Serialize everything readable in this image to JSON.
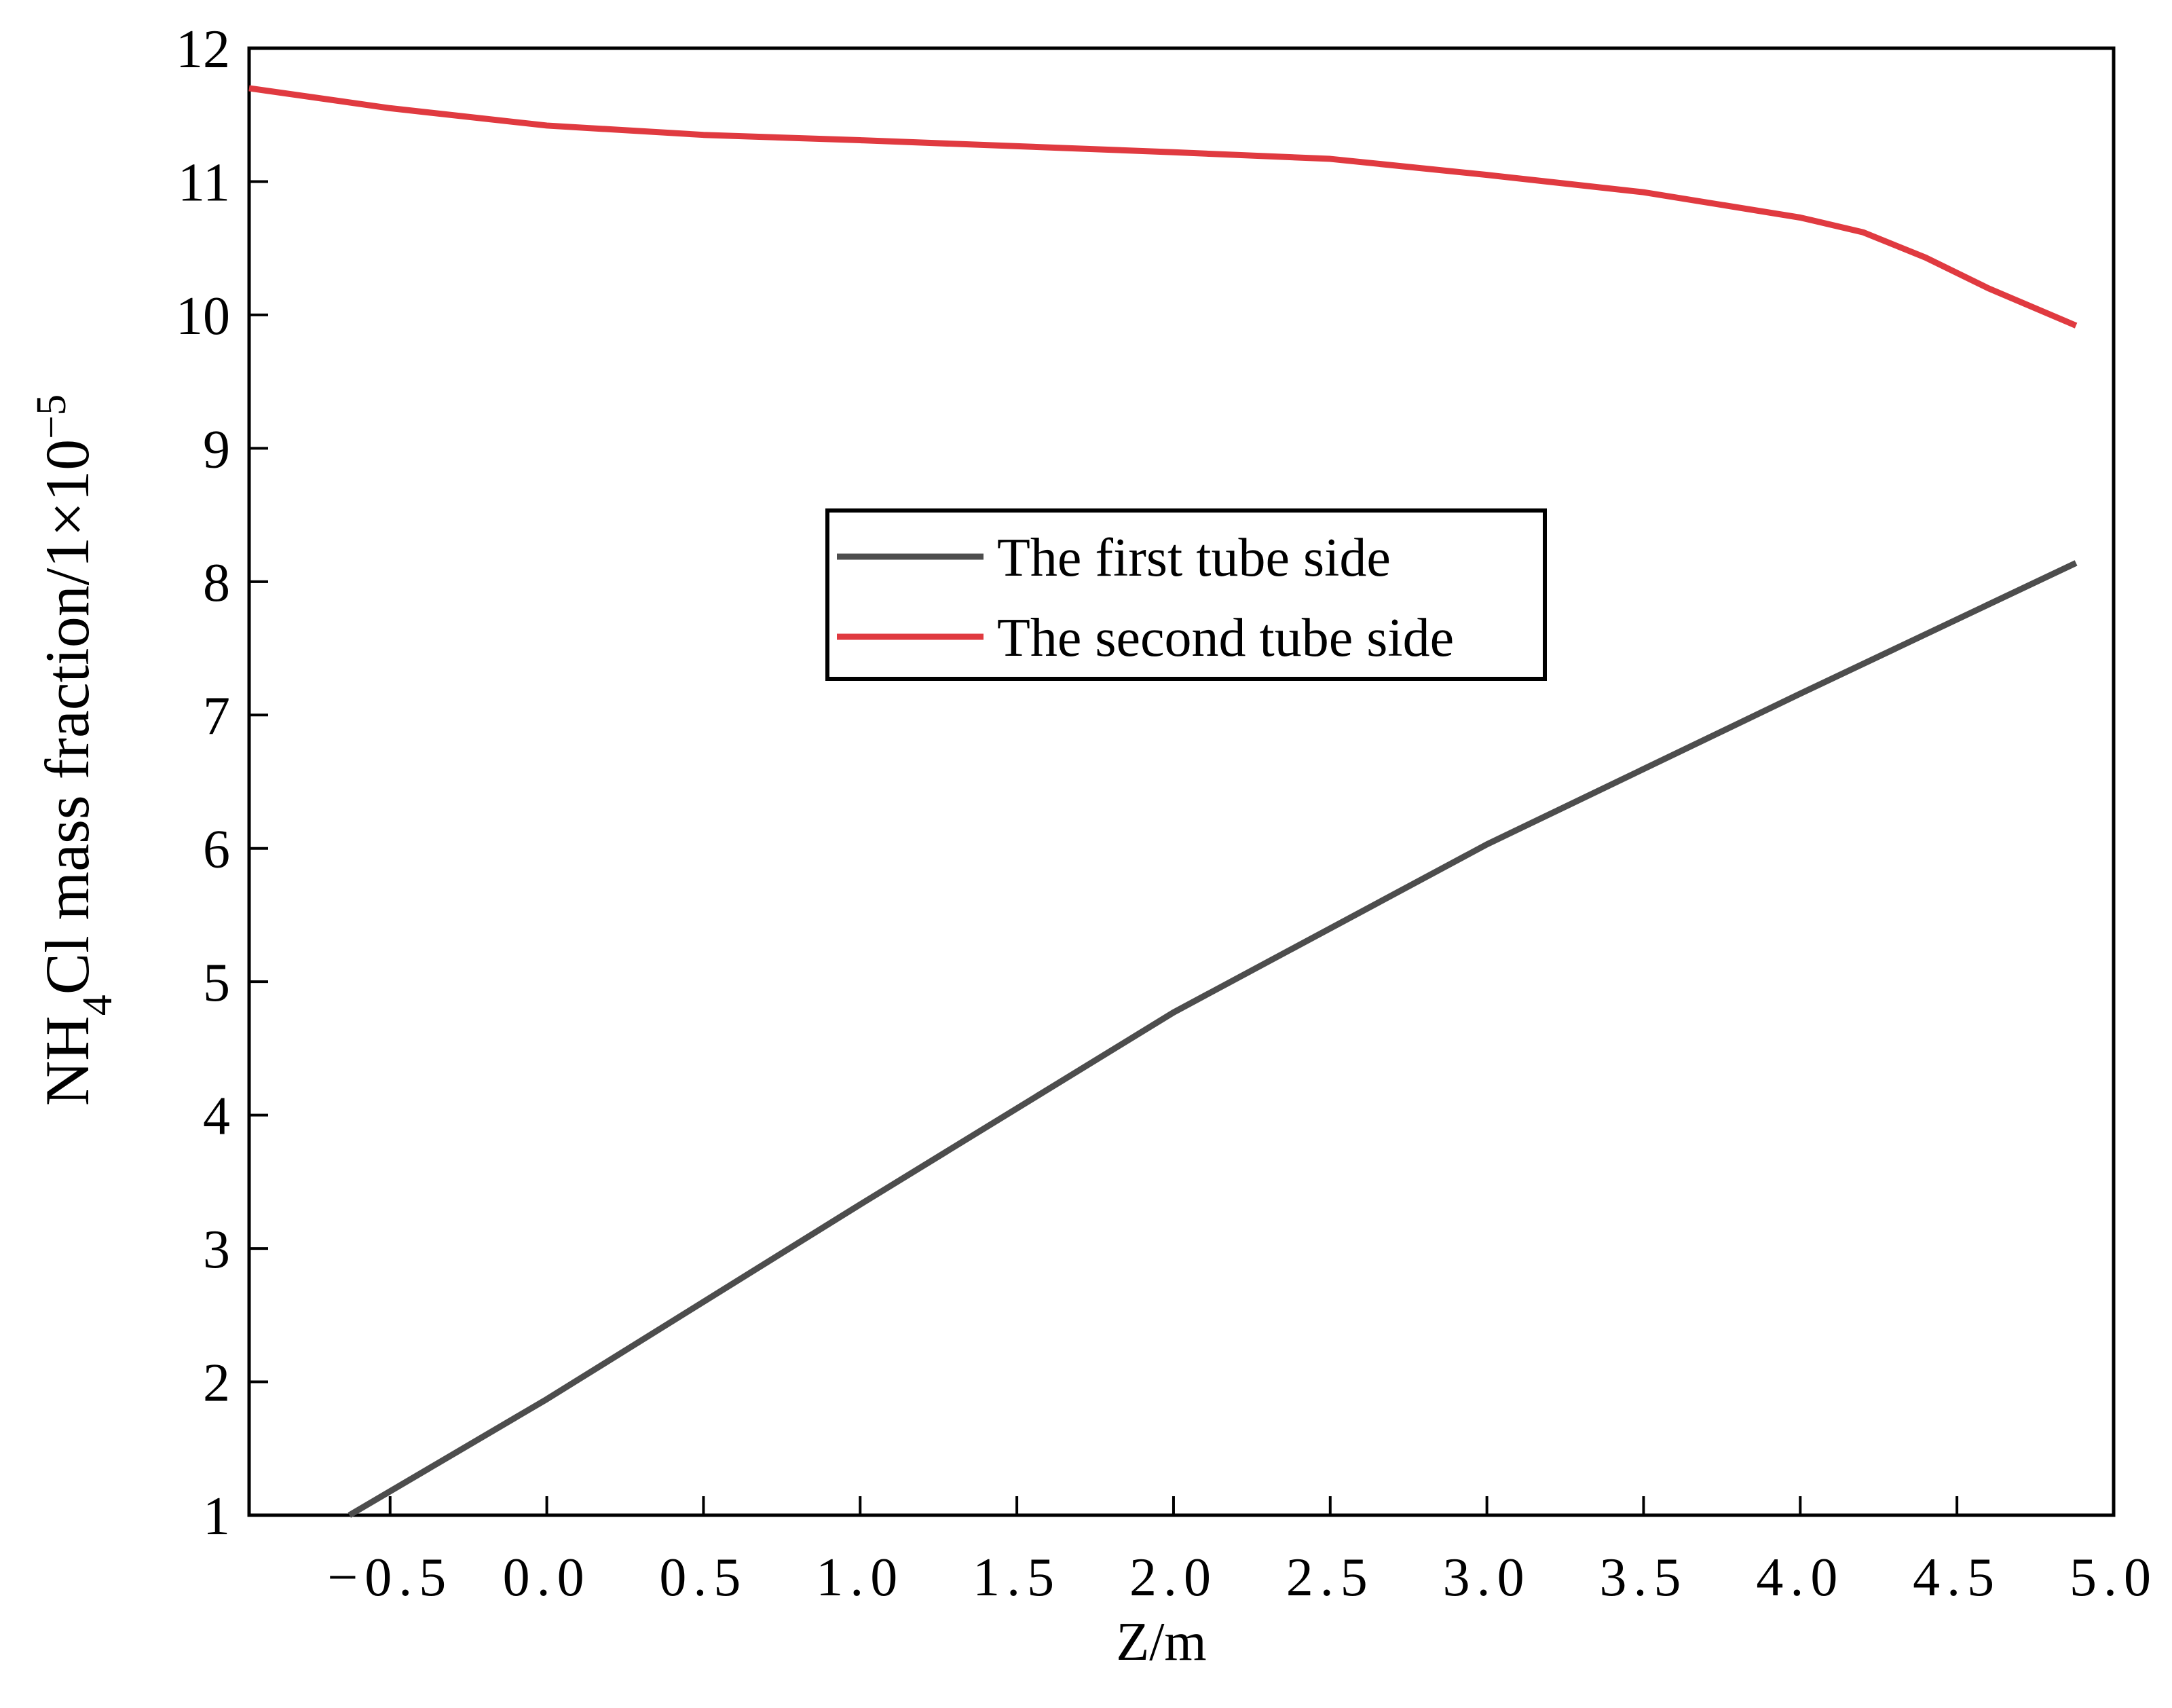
{
  "chart_data": {
    "type": "line",
    "x_label": "Z/m",
    "y_label": [
      "NH",
      "4",
      "Cl mass fraction/1×10",
      "−5"
    ],
    "xlim": [
      -0.95,
      5.0
    ],
    "ylim": [
      1,
      12
    ],
    "xticks": [
      {
        "value": -0.5,
        "label": "−0.5"
      },
      {
        "value": 0,
        "label": "0.0"
      },
      0.5,
      {
        "value": 1,
        "label": "1.0"
      },
      1.5,
      {
        "value": 2,
        "label": "2.0"
      },
      2.5,
      {
        "value": 3,
        "label": "3.0"
      },
      3.5,
      {
        "value": 4,
        "label": "4.0"
      },
      4.5,
      {
        "value": 5,
        "label": "5.0"
      }
    ],
    "yticks": [
      1,
      2,
      3,
      4,
      5,
      6,
      7,
      8,
      9,
      10,
      11,
      12
    ],
    "legend_position": "upper center",
    "series": [
      {
        "name": "The first tube side",
        "color": "#4d4d4d",
        "x": [
          -0.63,
          0,
          1,
          2,
          3,
          4,
          4.88
        ],
        "values": [
          1,
          1.87,
          3.33,
          4.77,
          6.03,
          7.16,
          8.14
        ]
      },
      {
        "name": "The second tube side",
        "color": "#e03a40",
        "x": [
          -0.95,
          -0.5,
          0,
          0.5,
          1,
          2,
          2.5,
          3,
          3.5,
          4,
          4.2,
          4.4,
          4.6,
          4.88
        ],
        "values": [
          11.7,
          11.55,
          11.42,
          11.35,
          11.31,
          11.22,
          11.17,
          11.05,
          10.92,
          10.73,
          10.62,
          10.43,
          10.2,
          9.92
        ]
      }
    ]
  }
}
